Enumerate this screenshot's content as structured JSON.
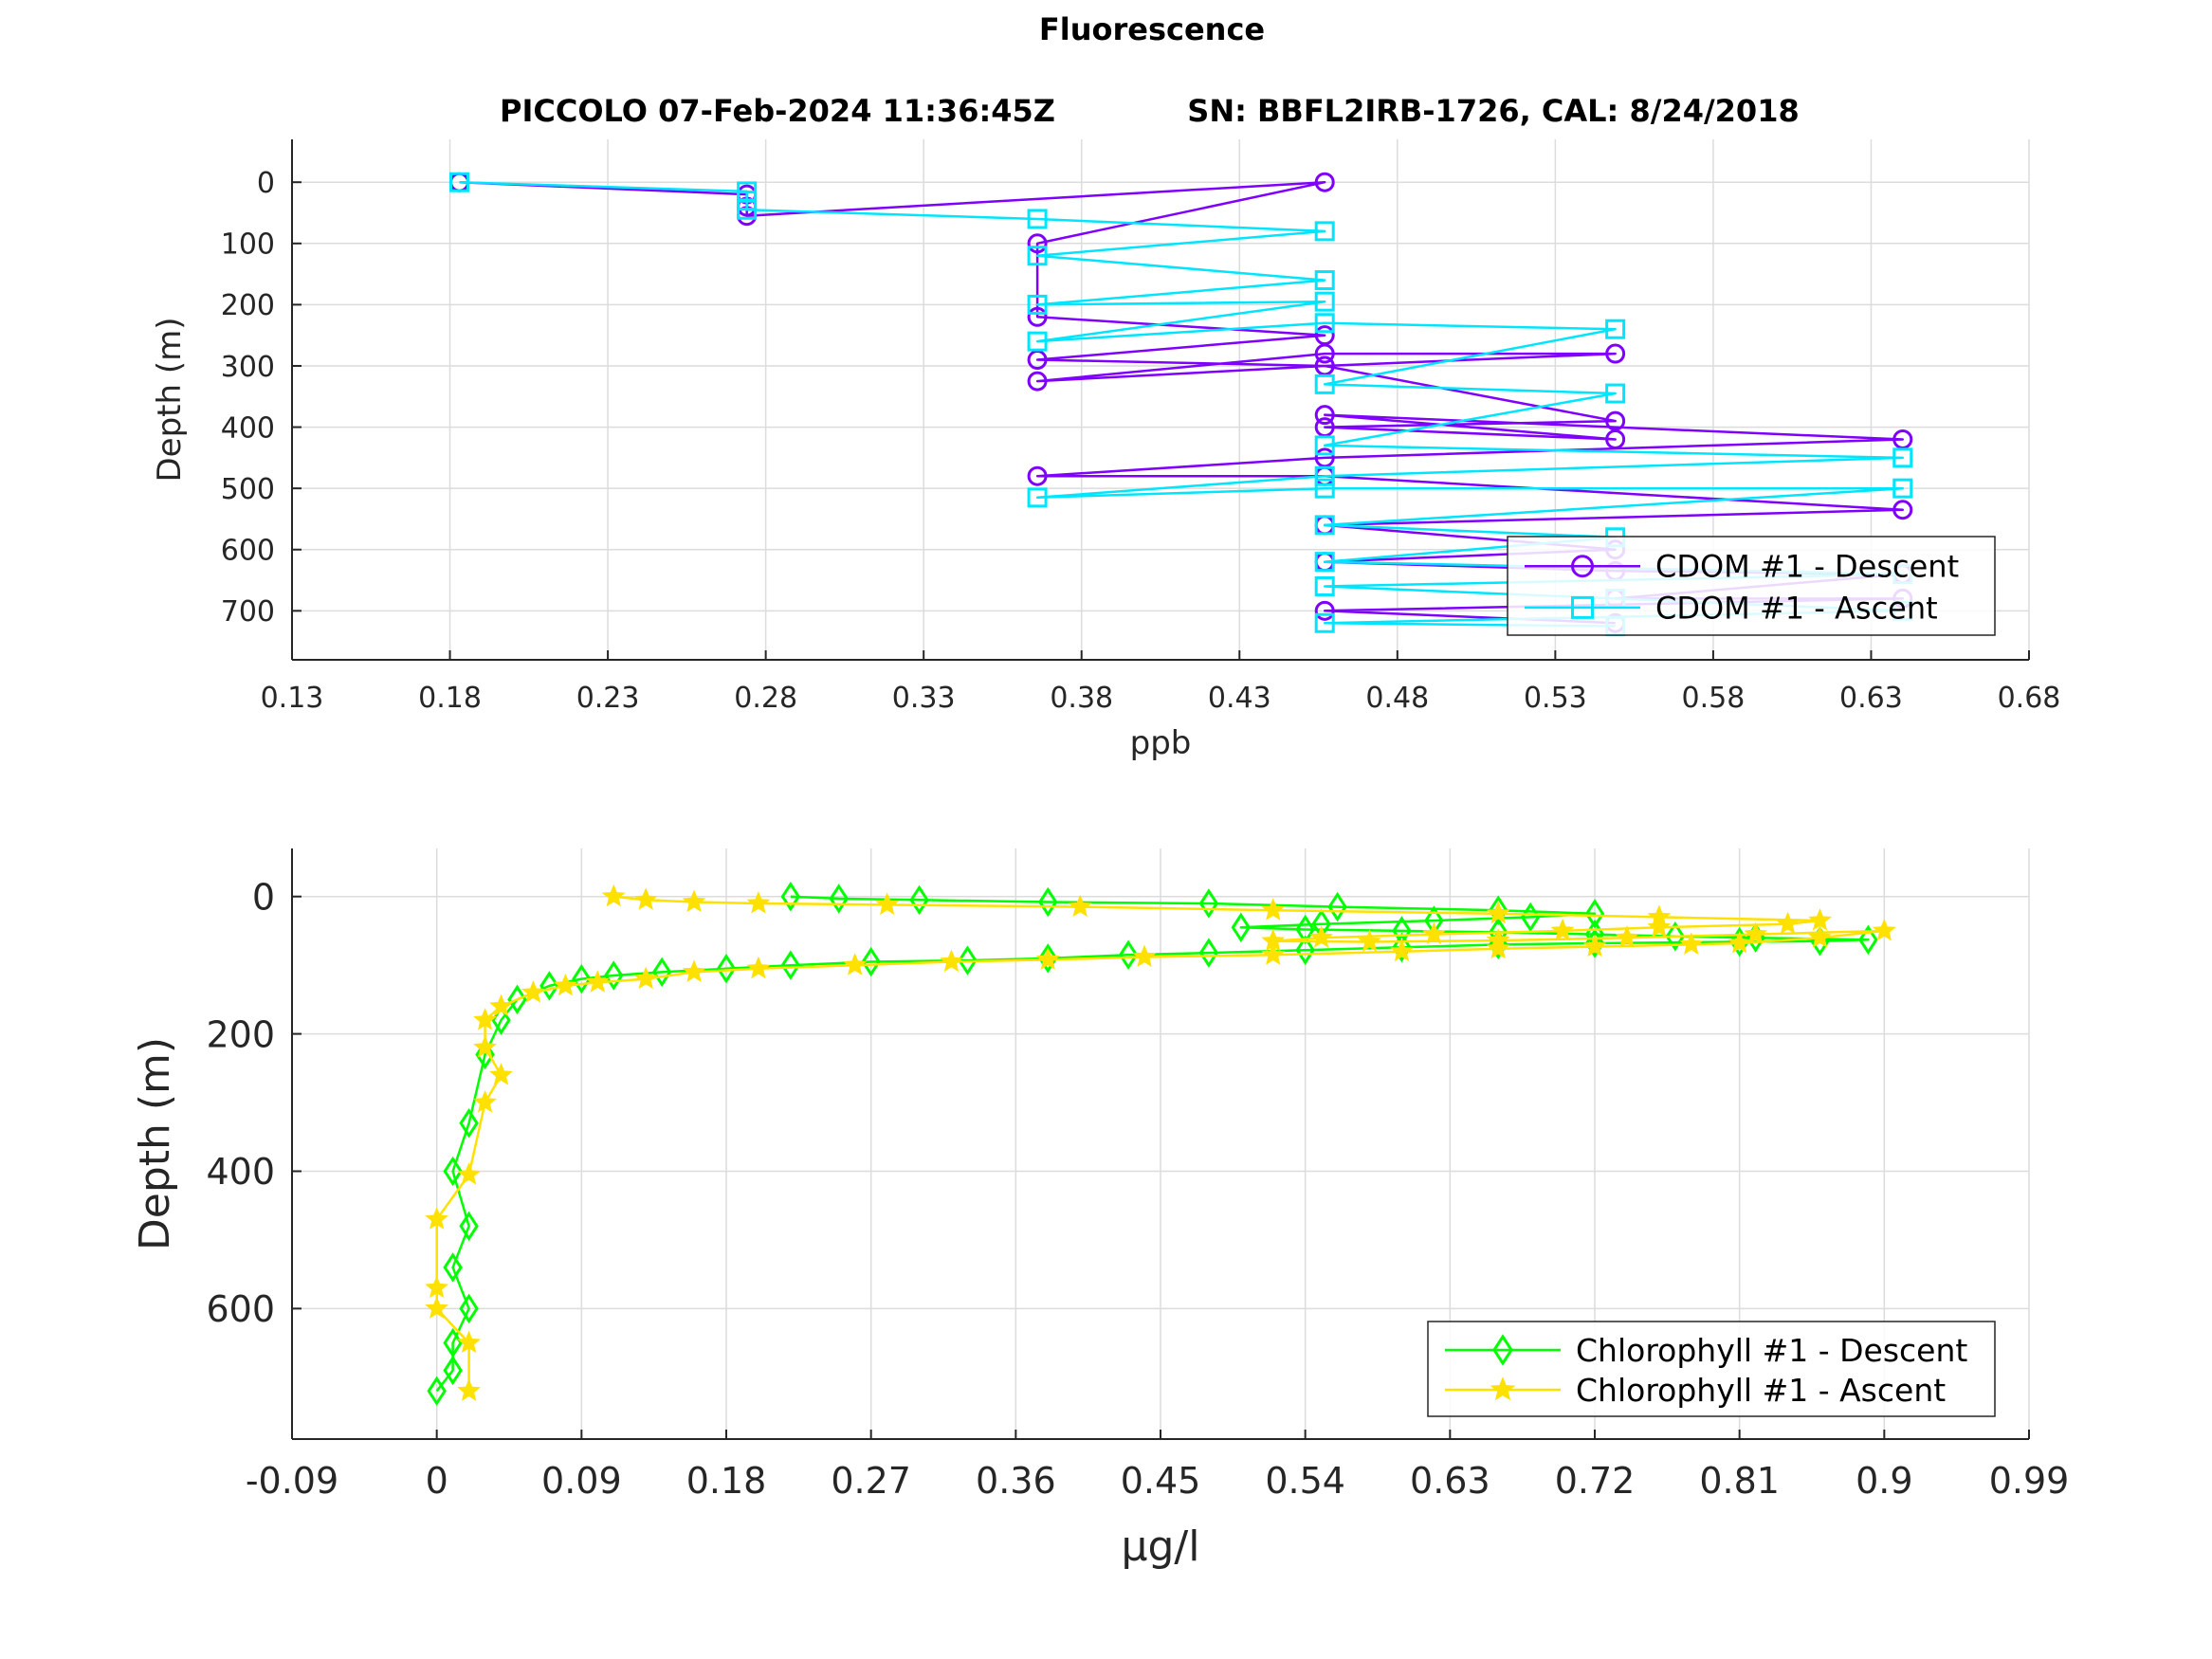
{
  "figure": {
    "title": "Fluorescence",
    "subtitle_left": "PICCOLO 07-Feb-2024 11:36:45Z",
    "subtitle_right": "SN: BBFL2IRB-1726, CAL: 8/24/2018"
  },
  "chart_data": [
    {
      "type": "line",
      "xlabel": "ppb",
      "ylabel": "Depth (m)",
      "xlim": [
        0.13,
        0.68
      ],
      "ylim": [
        780,
        -70
      ],
      "y_reversed": true,
      "grid": true,
      "legend_placement": "bottom-right",
      "xticks": [
        "0.13",
        "0.18",
        "0.23",
        "0.28",
        "0.33",
        "0.38",
        "0.43",
        "0.48",
        "0.53",
        "0.58",
        "0.63",
        "0.68"
      ],
      "yticks": [
        "0",
        "100",
        "200",
        "300",
        "400",
        "500",
        "600",
        "700"
      ],
      "series": [
        {
          "name": "CDOM #1 - Descent",
          "color": "#7f00ff",
          "marker": "circle",
          "x": [
            0.183,
            0.274,
            0.274,
            0.274,
            0.457,
            0.366,
            0.366,
            0.457,
            0.366,
            0.457,
            0.366,
            0.457,
            0.549,
            0.457,
            0.549,
            0.457,
            0.549,
            0.457,
            0.64,
            0.457,
            0.366,
            0.457,
            0.64,
            0.457,
            0.549,
            0.457,
            0.549,
            0.64,
            0.549,
            0.64,
            0.457,
            0.549
          ],
          "y": [
            0,
            20,
            40,
            55,
            0,
            100,
            220,
            250,
            290,
            300,
            325,
            280,
            280,
            300,
            390,
            400,
            420,
            380,
            420,
            450,
            480,
            480,
            535,
            560,
            600,
            620,
            635,
            640,
            680,
            680,
            700,
            720
          ]
        },
        {
          "name": "CDOM #1 - Ascent",
          "color": "#00e5ff",
          "marker": "square",
          "x": [
            0.183,
            0.274,
            0.274,
            0.274,
            0.366,
            0.457,
            0.366,
            0.457,
            0.366,
            0.457,
            0.366,
            0.457,
            0.549,
            0.457,
            0.549,
            0.457,
            0.64,
            0.457,
            0.366,
            0.457,
            0.64,
            0.457,
            0.549,
            0.457,
            0.64,
            0.457,
            0.549,
            0.64,
            0.457,
            0.549
          ],
          "y": [
            0,
            15,
            30,
            45,
            60,
            80,
            120,
            160,
            200,
            195,
            260,
            230,
            240,
            330,
            345,
            430,
            450,
            480,
            515,
            500,
            500,
            560,
            580,
            620,
            640,
            660,
            680,
            700,
            720,
            725
          ]
        }
      ]
    },
    {
      "type": "line",
      "xlabel": "μg/l",
      "ylabel": "Depth (m)",
      "xlim": [
        -0.09,
        0.99
      ],
      "ylim": [
        790,
        -70
      ],
      "y_reversed": true,
      "grid": true,
      "legend_placement": "bottom-right",
      "xticks": [
        "-0.09",
        "0",
        "0.09",
        "0.18",
        "0.27",
        "0.36",
        "0.45",
        "0.54",
        "0.63",
        "0.72",
        "0.81",
        "0.9",
        "0.99"
      ],
      "yticks": [
        "0",
        "200",
        "400",
        "600"
      ],
      "series": [
        {
          "name": "Chlorophyll #1 - Descent",
          "color": "#00ff00",
          "marker": "diamond",
          "x": [
            0.0,
            0.01,
            0.01,
            0.02,
            0.01,
            0.02,
            0.01,
            0.02,
            0.03,
            0.04,
            0.05,
            0.07,
            0.09,
            0.11,
            0.14,
            0.18,
            0.22,
            0.27,
            0.33,
            0.38,
            0.43,
            0.48,
            0.54,
            0.6,
            0.66,
            0.72,
            0.81,
            0.86,
            0.89,
            0.82,
            0.77,
            0.72,
            0.66,
            0.6,
            0.54,
            0.5,
            0.55,
            0.62,
            0.68,
            0.72,
            0.66,
            0.56,
            0.48,
            0.38,
            0.3,
            0.25,
            0.22
          ],
          "y": [
            720,
            690,
            650,
            600,
            540,
            480,
            400,
            330,
            230,
            180,
            150,
            130,
            120,
            115,
            110,
            105,
            100,
            95,
            93,
            90,
            85,
            82,
            78,
            74,
            70,
            68,
            66,
            65,
            63,
            60,
            58,
            55,
            52,
            50,
            48,
            45,
            40,
            35,
            30,
            25,
            20,
            15,
            10,
            8,
            5,
            3,
            0
          ]
        },
        {
          "name": "Chlorophyll #1 - Ascent",
          "color": "#ffe100",
          "marker": "star",
          "x": [
            0.02,
            0.02,
            0.0,
            0.0,
            0.0,
            0.02,
            0.03,
            0.04,
            0.03,
            0.03,
            0.04,
            0.06,
            0.08,
            0.1,
            0.13,
            0.16,
            0.2,
            0.26,
            0.32,
            0.38,
            0.44,
            0.52,
            0.6,
            0.66,
            0.72,
            0.78,
            0.81,
            0.86,
            0.9,
            0.82,
            0.74,
            0.66,
            0.58,
            0.52,
            0.55,
            0.62,
            0.7,
            0.76,
            0.84,
            0.86,
            0.76,
            0.66,
            0.52,
            0.4,
            0.28,
            0.2,
            0.16,
            0.13,
            0.11
          ],
          "y": [
            720,
            650,
            600,
            570,
            470,
            405,
            300,
            260,
            220,
            180,
            160,
            140,
            130,
            125,
            120,
            110,
            105,
            100,
            95,
            92,
            88,
            85,
            80,
            76,
            73,
            70,
            68,
            60,
            50,
            55,
            60,
            64,
            66,
            65,
            60,
            55,
            50,
            45,
            40,
            35,
            30,
            25,
            20,
            15,
            12,
            10,
            8,
            5,
            0
          ]
        }
      ]
    }
  ]
}
